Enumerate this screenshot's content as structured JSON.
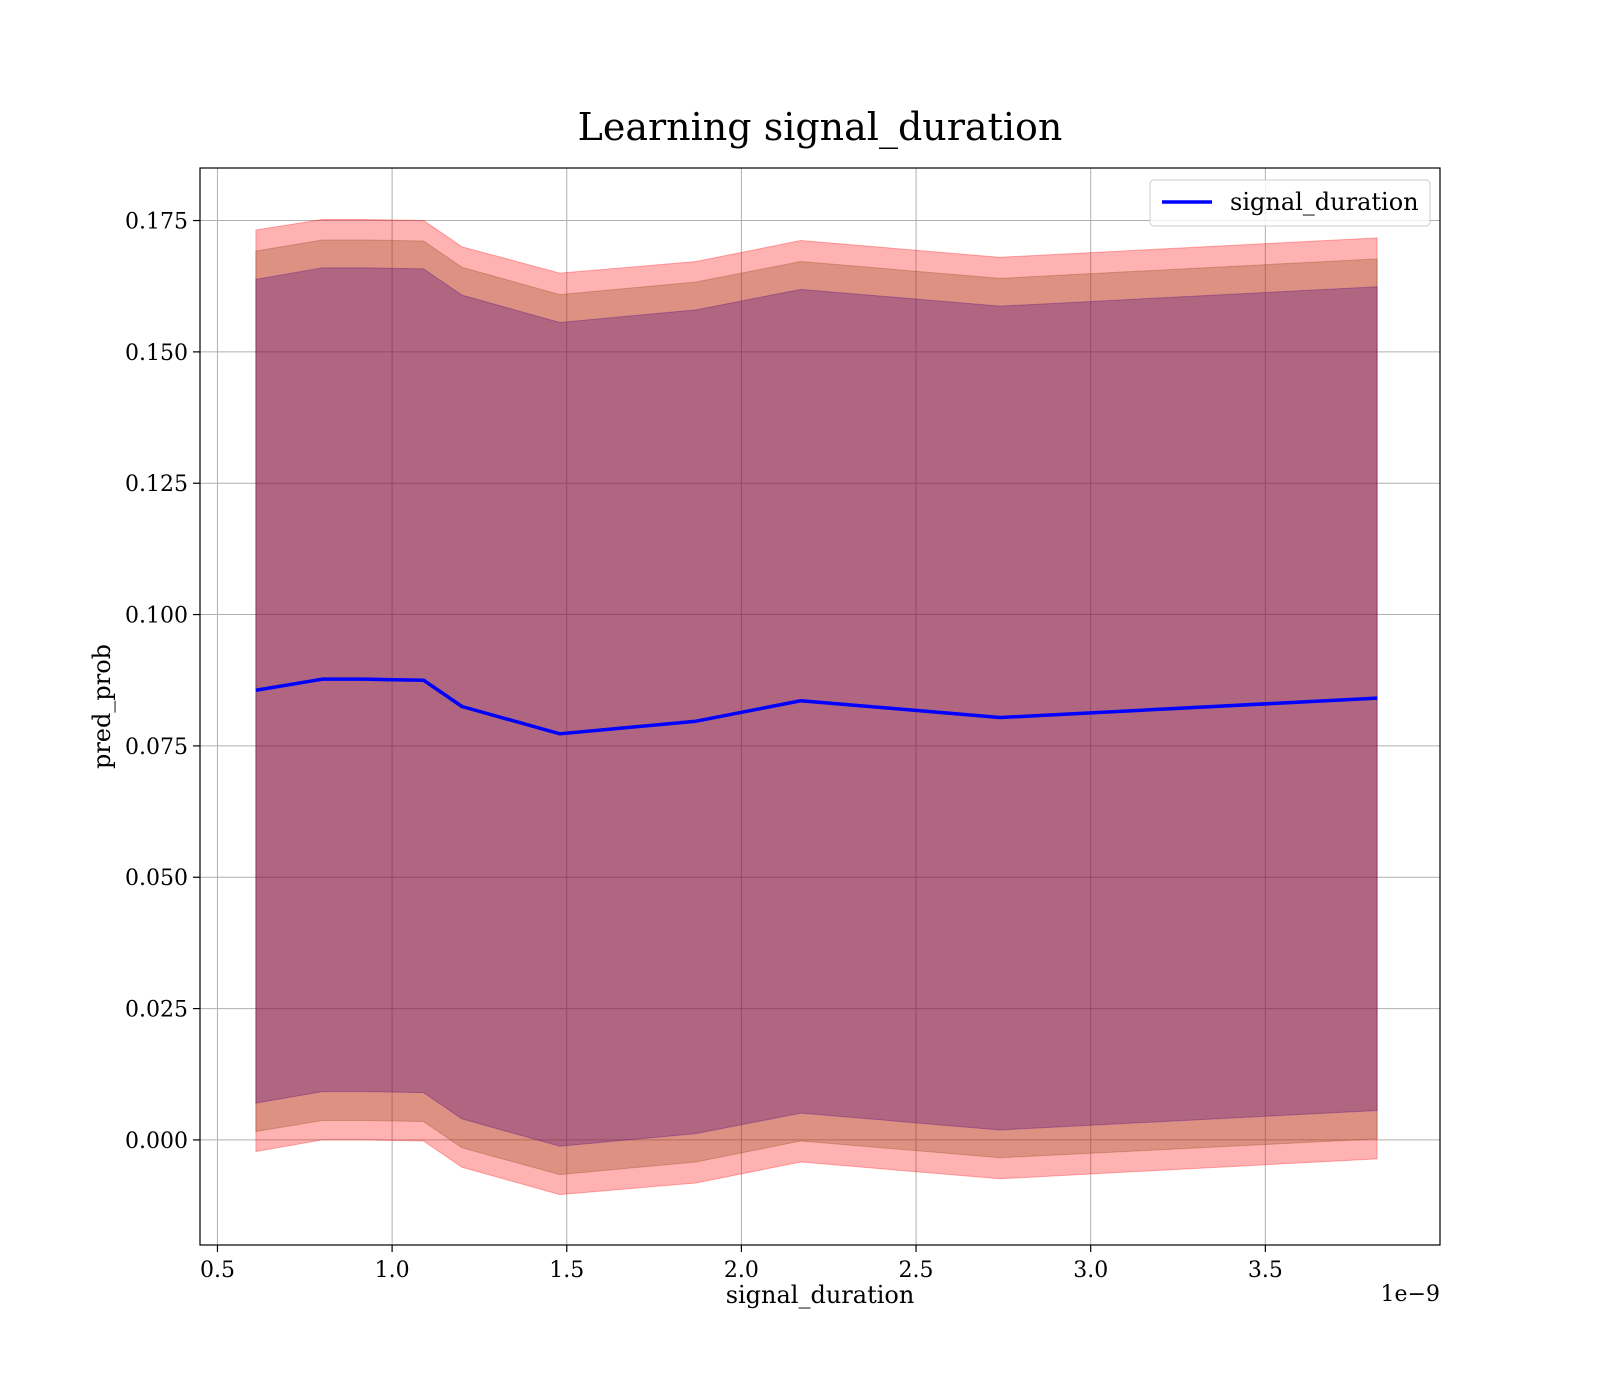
{
  "chart_data": {
    "type": "line",
    "title": "Learning signal_duration",
    "xlabel": "signal_duration",
    "ylabel": "pred_prob",
    "x_offset_label": "1e−9",
    "xlim": [
      0.45,
      4.0
    ],
    "ylim": [
      -0.02,
      0.185
    ],
    "grid": true,
    "legend_position": "top-right",
    "x_ticks": [
      0.5,
      1.0,
      1.5,
      2.0,
      2.5,
      3.0,
      3.5
    ],
    "x_tick_labels": [
      "0.5",
      "1.0",
      "1.5",
      "2.0",
      "2.5",
      "3.0",
      "3.5"
    ],
    "y_ticks": [
      0.0,
      0.025,
      0.05,
      0.075,
      0.1,
      0.125,
      0.15,
      0.175
    ],
    "y_tick_labels": [
      "0.000",
      "0.025",
      "0.050",
      "0.075",
      "0.100",
      "0.125",
      "0.150",
      "0.175"
    ],
    "x": [
      0.61,
      0.8,
      0.92,
      1.09,
      1.2,
      1.48,
      1.87,
      2.17,
      2.74,
      3.82
    ],
    "series": [
      {
        "name": "signal_duration",
        "color": "#0000ff",
        "values": [
          0.0856,
          0.0877,
          0.0877,
          0.0875,
          0.0825,
          0.0773,
          0.0797,
          0.0836,
          0.0804,
          0.0841
        ]
      }
    ],
    "bands": [
      {
        "color": "#ff0000",
        "opacity": 0.3,
        "upper": [
          0.1732,
          0.1752,
          0.1752,
          0.175,
          0.17,
          0.165,
          0.1672,
          0.1712,
          0.168,
          0.1717
        ],
        "lower": [
          -0.0022,
          0.0,
          0.0,
          -0.0002,
          -0.0052,
          -0.0104,
          -0.0082,
          -0.0042,
          -0.0074,
          -0.0036
        ]
      },
      {
        "color": "#8b4513",
        "opacity": 0.3,
        "upper": [
          0.1692,
          0.1713,
          0.1713,
          0.1711,
          0.1661,
          0.1609,
          0.1633,
          0.1672,
          0.164,
          0.1677
        ],
        "lower": [
          0.0016,
          0.0037,
          0.0037,
          0.0035,
          -0.0015,
          -0.0066,
          -0.0042,
          -0.0002,
          -0.0034,
          0.0002
        ]
      },
      {
        "color": "#4b0082",
        "opacity": 0.3,
        "upper": [
          0.1638,
          0.166,
          0.166,
          0.1658,
          0.1608,
          0.1556,
          0.158,
          0.1619,
          0.1587,
          0.1624
        ],
        "lower": [
          0.007,
          0.0092,
          0.0092,
          0.009,
          0.004,
          -0.0012,
          0.0012,
          0.0051,
          0.0019,
          0.0056
        ]
      }
    ]
  }
}
